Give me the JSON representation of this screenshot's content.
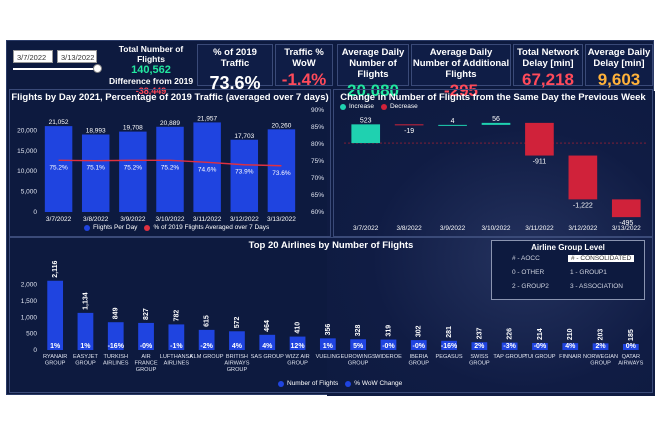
{
  "filters": {
    "start_date": "3/7/2022",
    "end_date": "3/13/2022"
  },
  "kpis": {
    "total_label": "Total Number of Flights",
    "total_value": "140,562",
    "diff_label": "Difference from 2019",
    "diff_value": "-38,449",
    "pct2019_label": "% of 2019 Traffic",
    "pct2019_value": "73.6%",
    "wow_label": "Traffic % WoW",
    "wow_value": "-1.4%",
    "avg_daily_label": "Average Daily Number of Flights",
    "avg_daily_value": "20,080",
    "avg_add_label": "Average Daily Number of Additional Flights",
    "avg_add_value": "-295",
    "net_delay_label": "Total Network Delay [min]",
    "net_delay_value": "67,218",
    "avg_delay_label": "Average Daily Delay [min]",
    "avg_delay_value": "9,603"
  },
  "colors": {
    "bar": "#1f44e0",
    "line": "#e03040",
    "increase": "#1fd1b0",
    "decrease": "#d0223a"
  },
  "chart_data": [
    {
      "type": "bar",
      "title": "Flights by Day 2021, Percentage of 2019 Traffic (averaged over 7 days)",
      "categories": [
        "3/7/2022",
        "3/8/2022",
        "3/9/2022",
        "3/10/2022",
        "3/11/2022",
        "3/12/2022",
        "3/13/2022"
      ],
      "series": [
        {
          "name": "Flights Per Day",
          "values": [
            21052,
            18993,
            19708,
            20889,
            21957,
            17703,
            20260
          ]
        },
        {
          "name": "% of 2019 Flights Averaged over 7 Days",
          "values": [
            75.2,
            75.1,
            75.2,
            75.2,
            74.6,
            73.9,
            73.6
          ],
          "labels": [
            "75.2%",
            "75.1%",
            "75.2%",
            "75.2%",
            "74.6%",
            "73.9%",
            "73.6%"
          ]
        }
      ],
      "bar_labels": [
        "21,052",
        "18,993",
        "19,708",
        "20,889",
        "21,957",
        "17,703",
        "20,260"
      ],
      "ylim": [
        0,
        25000
      ],
      "yticks": [
        "0",
        "5,000",
        "10,000",
        "15,000",
        "20,000"
      ],
      "y2lim": [
        60,
        90
      ],
      "y2ticks": [
        "60%",
        "65%",
        "70%",
        "75%",
        "80%",
        "85%",
        "90%"
      ]
    },
    {
      "type": "bar",
      "title": "Change in Number of Flights from the Same Day the Previous Week",
      "categories": [
        "3/7/2022",
        "3/8/2022",
        "3/9/2022",
        "3/10/2022",
        "3/11/2022",
        "3/12/2022",
        "3/13/2022"
      ],
      "values": [
        523,
        -19,
        4,
        56,
        -911,
        -1222,
        -495
      ],
      "labels": [
        "523",
        "-19",
        "4",
        "56",
        "-911",
        "-1,222",
        "-495"
      ],
      "legend": [
        "Increase",
        "Decrease"
      ]
    },
    {
      "type": "bar",
      "title": "Top 20 Airlines by Number of Flights",
      "categories": [
        "RYANAIR GROUP",
        "EASYJET GROUP",
        "TURKISH AIRLINES",
        "AIR FRANCE GROUP",
        "LUFTHANSA AIRLINES",
        "KLM GROUP",
        "BRITISH AIRWAYS GROUP",
        "SAS GROUP",
        "WIZZ AIR GROUP",
        "VUELING",
        "EUROWINGS GROUP",
        "WIDEROE",
        "IBERIA GROUP",
        "PEGASUS",
        "SWISS GROUP",
        "TAP GROUP",
        "TUI GROUP",
        "FINNAIR",
        "NORWEGIAN GROUP",
        "QATAR AIRWAYS"
      ],
      "values": [
        2116,
        1134,
        849,
        827,
        782,
        615,
        572,
        464,
        410,
        356,
        328,
        319,
        302,
        281,
        237,
        226,
        214,
        210,
        203,
        185
      ],
      "labels": [
        "2,116",
        "1,134",
        "849",
        "827",
        "782",
        "615",
        "572",
        "464",
        "410",
        "356",
        "328",
        "319",
        "302",
        "281",
        "237",
        "226",
        "214",
        "210",
        "203",
        "185"
      ],
      "wow_labels": [
        "1%",
        "1%",
        "-16%",
        "-0%",
        "-1%",
        "-2%",
        "4%",
        "4%",
        "12%",
        "1%",
        "5%",
        "-0%",
        "-0%",
        "-16%",
        "2%",
        "-3%",
        "-0%",
        "4%",
        "2%",
        "0%"
      ],
      "ylim": [
        0,
        2200
      ],
      "yticks": [
        "0",
        "500",
        "1,000",
        "1,500",
        "2,000"
      ],
      "legend": [
        "Number of Flights",
        "% WoW Change"
      ]
    }
  ],
  "airline_group": {
    "title": "Airline Group Level",
    "options": [
      "# - AOCC",
      "# - CONSOLIDATED",
      "0 - OTHER",
      "1 - GROUP1",
      "2 - GROUP2",
      "3 - ASSOCIATION"
    ],
    "selected": "# - CONSOLIDATED"
  }
}
